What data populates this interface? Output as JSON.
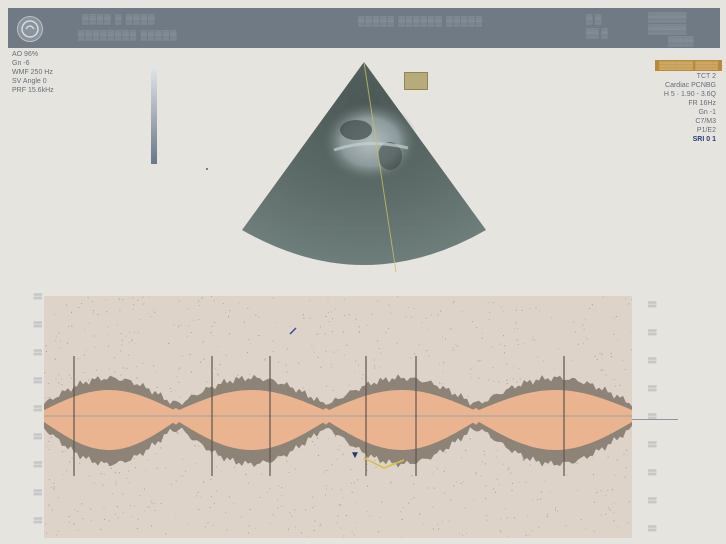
{
  "header": {
    "left_line1": " ▒▒▒▒ ▒ ▒▒▒▒",
    "left_line2": "▒▒▒▒▒▒▒▒ ▒▒▒▒▒",
    "center": "▒▒▒▒▒ ▒▒▒▒▒▒ ▒▒▒▒▒",
    "right_col1": [
      "▒ ▒",
      "▒▒ ▒"
    ],
    "right_col2": [
      "▒▒▒▒▒▒",
      "▒▒▒▒▒▒",
      "▒▒▒▒"
    ],
    "probe": "▒▒▒▒▒▒ ▒▒▒▒"
  },
  "left_params": [
    "AO 96%",
    "Gn -6",
    "WMF 250 Hz",
    "SV Angle 0",
    "PRF 15.6kHz"
  ],
  "right_params": [
    "TCT 2",
    "Cardiac PCNBG",
    "H 5 · 1.90 - 3.6Q",
    "FR 16Hz",
    "Gn -1",
    "C7/M3",
    "P1/E2",
    "SRI 0 1"
  ],
  "scale_left": [
    "▒▒",
    "▒▒",
    "▒▒",
    "▒▒",
    "▒▒",
    "▒▒",
    "▒▒",
    "▒▒",
    "▒▒"
  ],
  "scale_right": [
    "▒▒",
    "▒▒",
    "▒▒",
    "▒▒",
    "▒▒",
    "▒▒",
    "▒▒",
    "▒▒",
    "▒▒"
  ],
  "colors": {
    "header": "#6f7a84",
    "spectrum": "#e9b48f",
    "baseline": "#9aa4a8"
  }
}
